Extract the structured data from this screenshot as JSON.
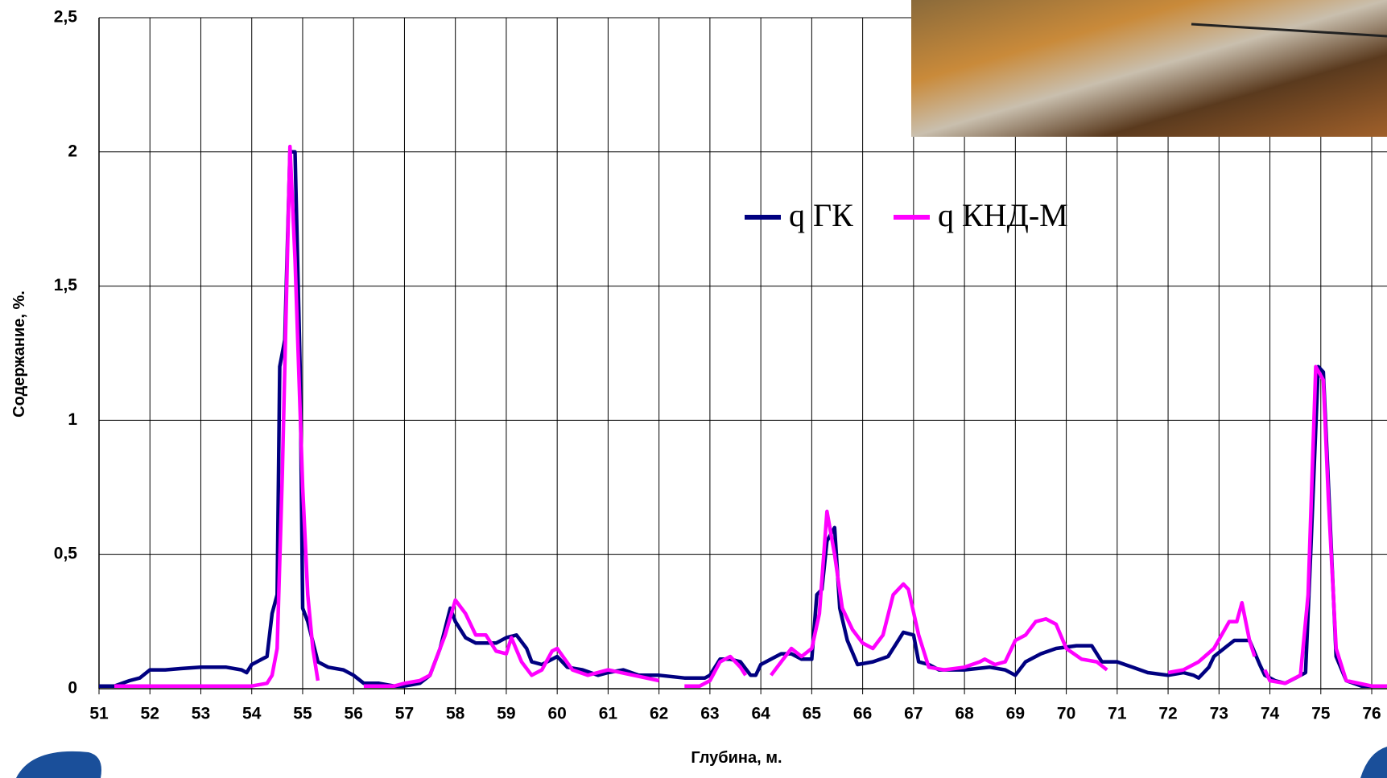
{
  "chart_data": {
    "type": "line",
    "x_label": "Глубина, м.",
    "y_label": "Содержание, %.",
    "xlim": [
      51,
      76.3
    ],
    "ylim": [
      0,
      2.5
    ],
    "xticks": [
      51,
      52,
      53,
      54,
      55,
      56,
      57,
      58,
      59,
      60,
      61,
      62,
      63,
      64,
      65,
      66,
      67,
      68,
      69,
      70,
      71,
      72,
      73,
      74,
      75,
      76
    ],
    "yticks": [
      0,
      {
        "value": 0.5,
        "label": "0,5"
      },
      1,
      {
        "value": 1.5,
        "label": "1,5"
      },
      2,
      {
        "value": 2.5,
        "label": "2,5"
      }
    ],
    "grid": true,
    "series": [
      {
        "name": "q ГК",
        "color": "#000080",
        "x": [
          51.0,
          51.3,
          51.6,
          51.8,
          52.0,
          52.3,
          52.6,
          53.0,
          53.5,
          53.8,
          53.9,
          54.0,
          54.2,
          54.3,
          54.4,
          54.5,
          54.55,
          54.65,
          54.75,
          54.85,
          54.95,
          55.0,
          55.1,
          55.3,
          55.5,
          55.8,
          56.0,
          56.2,
          56.5,
          56.8,
          57.0,
          57.3,
          57.5,
          57.7,
          57.9,
          58.0,
          58.2,
          58.4,
          58.6,
          58.8,
          59.0,
          59.2,
          59.4,
          59.5,
          59.7,
          60.0,
          60.2,
          60.5,
          60.8,
          61.0,
          61.3,
          61.6,
          62.0,
          62.5,
          62.9,
          63.0,
          63.2,
          63.4,
          63.6,
          63.8,
          63.9,
          64.0,
          64.2,
          64.4,
          64.6,
          64.8,
          65.0,
          65.1,
          65.2,
          65.3,
          65.45,
          65.55,
          65.7,
          65.9,
          66.2,
          66.5,
          66.7,
          66.8,
          67.0,
          67.1,
          67.3,
          67.5,
          68.0,
          68.5,
          68.8,
          69.0,
          69.2,
          69.5,
          69.8,
          70.2,
          70.5,
          70.7,
          71.0,
          71.3,
          71.6,
          72.0,
          72.3,
          72.5,
          72.6,
          72.8,
          72.9,
          73.1,
          73.3,
          73.6,
          73.8,
          73.9,
          74.1,
          74.3,
          74.5,
          74.7,
          74.8,
          74.95,
          75.05,
          75.2,
          75.3,
          75.5,
          75.8,
          76.3
        ],
        "values": [
          0.01,
          0.01,
          0.03,
          0.04,
          0.07,
          0.07,
          0.075,
          0.08,
          0.08,
          0.07,
          0.06,
          0.09,
          0.11,
          0.12,
          0.28,
          0.35,
          1.2,
          1.3,
          2.0,
          2.0,
          1.2,
          0.3,
          0.25,
          0.1,
          0.08,
          0.07,
          0.05,
          0.02,
          0.02,
          0.01,
          0.01,
          0.02,
          0.05,
          0.15,
          0.3,
          0.25,
          0.19,
          0.17,
          0.17,
          0.17,
          0.19,
          0.2,
          0.15,
          0.1,
          0.09,
          0.12,
          0.08,
          0.07,
          0.05,
          0.06,
          0.07,
          0.05,
          0.05,
          0.04,
          0.04,
          0.05,
          0.11,
          0.11,
          0.1,
          0.05,
          0.05,
          0.09,
          0.11,
          0.13,
          0.13,
          0.11,
          0.11,
          0.35,
          0.37,
          0.55,
          0.6,
          0.3,
          0.18,
          0.09,
          0.1,
          0.12,
          0.18,
          0.21,
          0.2,
          0.1,
          0.09,
          0.07,
          0.07,
          0.08,
          0.07,
          0.05,
          0.1,
          0.13,
          0.15,
          0.16,
          0.16,
          0.1,
          0.1,
          0.08,
          0.06,
          0.05,
          0.06,
          0.05,
          0.04,
          0.08,
          0.12,
          0.15,
          0.18,
          0.18,
          0.09,
          0.05,
          0.03,
          0.02,
          0.04,
          0.06,
          0.5,
          1.2,
          1.18,
          0.55,
          0.12,
          0.03,
          0.01,
          0.01
        ]
      },
      {
        "name": "q КНД-М",
        "color": "#ff00ff",
        "x": [
          51.3,
          52.0,
          53.0,
          54.0,
          54.3,
          54.4,
          54.5,
          54.6,
          54.75,
          54.85,
          55.0,
          55.1,
          55.2,
          55.3,
          55.7,
          56.2,
          56.8,
          57.0,
          57.3,
          57.5,
          57.8,
          58.0,
          58.2,
          58.4,
          58.6,
          58.8,
          59.0,
          59.1,
          59.3,
          59.5,
          59.7,
          59.9,
          60.0,
          60.3,
          60.6,
          61.0,
          61.5,
          62.0,
          62.3,
          62.5,
          62.8,
          63.0,
          63.2,
          63.4,
          63.6,
          63.7,
          64.0,
          64.2,
          64.4,
          64.6,
          64.8,
          65.0,
          65.15,
          65.3,
          65.45,
          65.6,
          65.8,
          66.0,
          66.2,
          66.4,
          66.6,
          66.8,
          66.9,
          67.1,
          67.3,
          67.6,
          68.0,
          68.3,
          68.4,
          68.6,
          68.8,
          69.0,
          69.2,
          69.4,
          69.6,
          69.8,
          70.0,
          70.3,
          70.6,
          70.8,
          71.4,
          72.0,
          72.3,
          72.6,
          72.9,
          73.2,
          73.35,
          73.45,
          73.6,
          73.7,
          73.8,
          73.9,
          74.0,
          74.3,
          74.6,
          74.75,
          74.9,
          75.05,
          75.15,
          75.3,
          75.5,
          76.0,
          76.3
        ],
        "values": [
          0.01,
          0.01,
          0.01,
          0.01,
          0.02,
          0.05,
          0.15,
          0.8,
          2.02,
          1.6,
          0.75,
          0.35,
          0.15,
          0.03,
          null,
          0.01,
          0.01,
          0.02,
          0.03,
          0.05,
          0.2,
          0.33,
          0.28,
          0.2,
          0.2,
          0.14,
          0.13,
          0.19,
          0.1,
          0.05,
          0.07,
          0.14,
          0.15,
          0.07,
          0.05,
          0.07,
          0.05,
          0.03,
          null,
          0.01,
          0.01,
          0.03,
          0.1,
          0.12,
          0.08,
          0.05,
          null,
          0.05,
          0.1,
          0.15,
          0.12,
          0.15,
          0.28,
          0.66,
          0.5,
          0.3,
          0.22,
          0.17,
          0.15,
          0.2,
          0.35,
          0.39,
          0.37,
          0.2,
          0.08,
          0.07,
          0.08,
          0.1,
          0.11,
          0.09,
          0.1,
          0.18,
          0.2,
          0.25,
          0.26,
          0.24,
          0.15,
          0.11,
          0.1,
          0.07,
          null,
          0.06,
          0.07,
          0.1,
          0.15,
          0.25,
          0.25,
          0.32,
          0.18,
          0.12,
          null,
          0.07,
          0.03,
          0.02,
          0.05,
          0.35,
          1.2,
          1.15,
          0.7,
          0.15,
          0.03,
          0.01,
          0.01
        ]
      }
    ]
  }
}
